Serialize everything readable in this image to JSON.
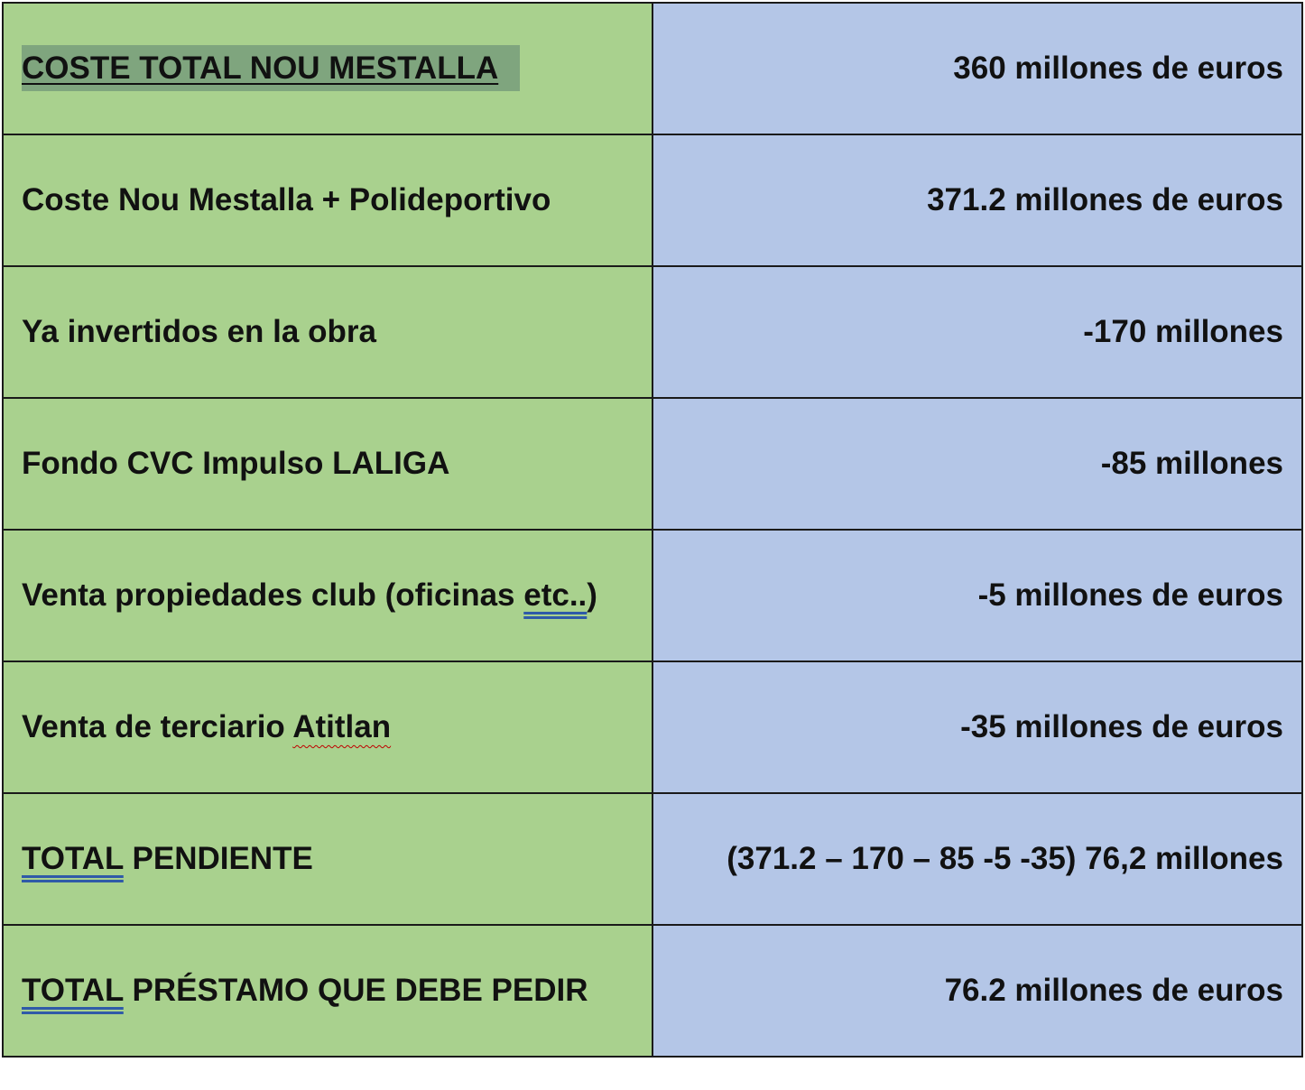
{
  "rows": [
    {
      "label": "COSTE TOTAL NOU MESTALLA",
      "value": "360 millones de euros"
    },
    {
      "label": "Coste Nou Mestalla + Polideportivo",
      "value": "371.2 millones de euros"
    },
    {
      "label": "Ya invertidos en la obra",
      "value": "-170 millones"
    },
    {
      "label": "Fondo CVC Impulso LALIGA",
      "value": "-85 millones"
    },
    {
      "label_pre": "Venta propiedades club (oficinas ",
      "label_mark": "etc..",
      "label_post": ")",
      "value": "-5 millones de euros"
    },
    {
      "label_pre": "Venta de terciario ",
      "label_mark": "Atitlan",
      "value": "-35 millones de euros"
    },
    {
      "label_mark": "TOTAL",
      "label_post": " PENDIENTE",
      "value": "(371.2 – 170 – 85 -5 -35) 76,2 millones"
    },
    {
      "label_mark": "TOTAL",
      "label_post": " PRÉSTAMO QUE DEBE PEDIR",
      "value": "76.2 millones de euros"
    }
  ],
  "colors": {
    "label_column": "#a9d18e",
    "value_column": "#b4c6e7",
    "header_highlight": "#7fa57e",
    "border": "#1a1a1a"
  }
}
